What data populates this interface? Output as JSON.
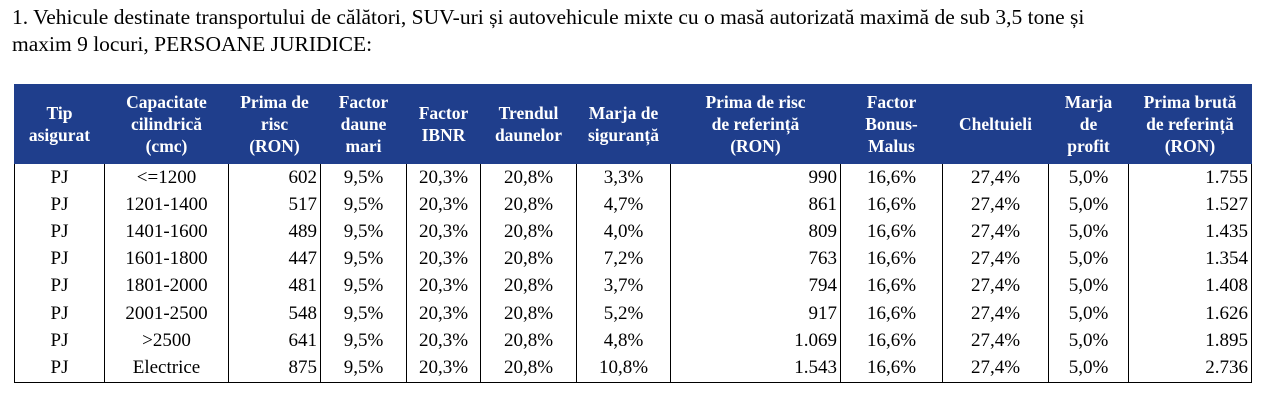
{
  "heading": {
    "line1": "1. Vehicule destinate transportului de călători, SUV-uri și autovehicule mixte cu o masă autorizată maximă de sub 3,5 tone și",
    "line2": "maxim 9 locuri, PERSOANE JURIDICE:"
  },
  "table": {
    "columns": [
      [
        "Tip",
        "asigurat"
      ],
      [
        "Capacitate",
        "cilindrică",
        "(cmc)"
      ],
      [
        "Prima de",
        "risc",
        "(RON)"
      ],
      [
        "Factor",
        "daune",
        "mari"
      ],
      [
        "Factor",
        "IBNR"
      ],
      [
        "Trendul",
        "daunelor"
      ],
      [
        "Marja de",
        "siguranță"
      ],
      [
        "Prima de risc",
        "de referință",
        "(RON)"
      ],
      [
        "Factor",
        "Bonus-",
        "Malus"
      ],
      [
        "Cheltuieli"
      ],
      [
        "Marja",
        "de",
        "profit"
      ],
      [
        "Prima brută",
        "de referință",
        "(RON)"
      ]
    ],
    "rows": [
      [
        "PJ",
        "<=1200",
        "602",
        "9,5%",
        "20,3%",
        "20,8%",
        "3,3%",
        "990",
        "16,6%",
        "27,4%",
        "5,0%",
        "1.755"
      ],
      [
        "PJ",
        "1201-1400",
        "517",
        "9,5%",
        "20,3%",
        "20,8%",
        "4,7%",
        "861",
        "16,6%",
        "27,4%",
        "5,0%",
        "1.527"
      ],
      [
        "PJ",
        "1401-1600",
        "489",
        "9,5%",
        "20,3%",
        "20,8%",
        "4,0%",
        "809",
        "16,6%",
        "27,4%",
        "5,0%",
        "1.435"
      ],
      [
        "PJ",
        "1601-1800",
        "447",
        "9,5%",
        "20,3%",
        "20,8%",
        "7,2%",
        "763",
        "16,6%",
        "27,4%",
        "5,0%",
        "1.354"
      ],
      [
        "PJ",
        "1801-2000",
        "481",
        "9,5%",
        "20,3%",
        "20,8%",
        "3,7%",
        "794",
        "16,6%",
        "27,4%",
        "5,0%",
        "1.408"
      ],
      [
        "PJ",
        "2001-2500",
        "548",
        "9,5%",
        "20,3%",
        "20,8%",
        "5,2%",
        "917",
        "16,6%",
        "27,4%",
        "5,0%",
        "1.626"
      ],
      [
        "PJ",
        ">2500",
        "641",
        "9,5%",
        "20,3%",
        "20,8%",
        "4,8%",
        "1.069",
        "16,6%",
        "27,4%",
        "5,0%",
        "1.895"
      ],
      [
        "PJ",
        "Electrice",
        "875",
        "9,5%",
        "20,3%",
        "20,8%",
        "10,8%",
        "1.543",
        "16,6%",
        "27,4%",
        "5,0%",
        "2.736"
      ]
    ]
  },
  "colors": {
    "header_bg": "#1f3e8c",
    "header_text": "#ffffff",
    "grid": "#000000"
  }
}
